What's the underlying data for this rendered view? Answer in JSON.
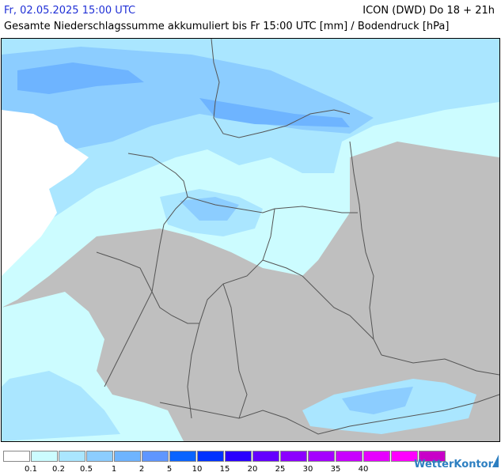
{
  "header": {
    "datetime": "Fr, 02.05.2025 15:00 UTC",
    "model": "ICON (DWD) Do 18 + 21h",
    "subtitle": "Gesamte Niederschlagssumme akkumuliert bis Fr 15:00 UTC [mm] / Bodendruck [hPa]"
  },
  "legend": {
    "colors": [
      "#ffffff",
      "#ccfcff",
      "#aae6ff",
      "#8ccdff",
      "#6eb4ff",
      "#5f96ff",
      "#0a64ff",
      "#0032ff",
      "#2a00ff",
      "#6400ff",
      "#8c00ff",
      "#a500ff",
      "#c800ff",
      "#e600ff",
      "#ff00ff",
      "#c800c8"
    ],
    "labels": [
      "0.1",
      "0.2",
      "0.5",
      "1",
      "2",
      "5",
      "10",
      "15",
      "20",
      "25",
      "30",
      "35",
      "40"
    ]
  },
  "brand": "WetterKontor",
  "map": {
    "colors": {
      "land_no_precip": "#bfbfbf",
      "sea": "#ffffff",
      "border": "#555555"
    }
  }
}
